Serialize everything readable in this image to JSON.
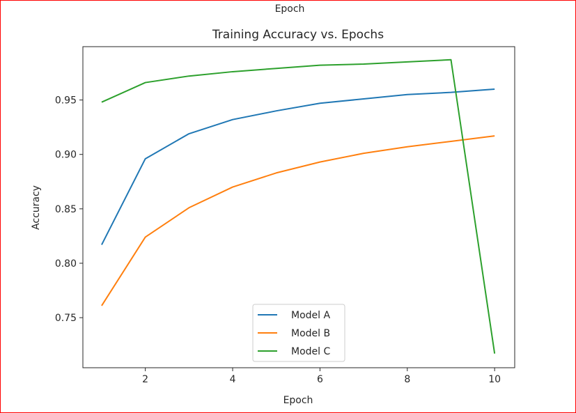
{
  "cropped_label": "Epoch",
  "chart_data": {
    "type": "line",
    "title": "Training Accuracy vs. Epochs",
    "xlabel": "Epoch",
    "ylabel": "Accuracy",
    "x": [
      1,
      2,
      3,
      4,
      5,
      6,
      7,
      8,
      9,
      10
    ],
    "xlim": [
      0.57,
      10.46
    ],
    "ylim": [
      0.704,
      0.999
    ],
    "xticks": [
      2,
      4,
      6,
      8,
      10
    ],
    "yticks": [
      0.75,
      0.8,
      0.85,
      0.9,
      0.95
    ],
    "ytick_labels": [
      "0.75",
      "0.80",
      "0.85",
      "0.90",
      "0.95"
    ],
    "grid": false,
    "legend_placement": "lower center",
    "series": [
      {
        "name": "Model A",
        "color": "#1f77b4",
        "values": [
          0.817,
          0.896,
          0.919,
          0.932,
          0.94,
          0.947,
          0.951,
          0.955,
          0.957,
          0.96
        ]
      },
      {
        "name": "Model B",
        "color": "#ff7f0e",
        "values": [
          0.761,
          0.824,
          0.851,
          0.87,
          0.883,
          0.893,
          0.901,
          0.907,
          0.912,
          0.917
        ]
      },
      {
        "name": "Model C",
        "color": "#2ca02c",
        "values": [
          0.948,
          0.966,
          0.972,
          0.976,
          0.979,
          0.982,
          0.983,
          0.985,
          0.987,
          0.717
        ]
      }
    ]
  }
}
